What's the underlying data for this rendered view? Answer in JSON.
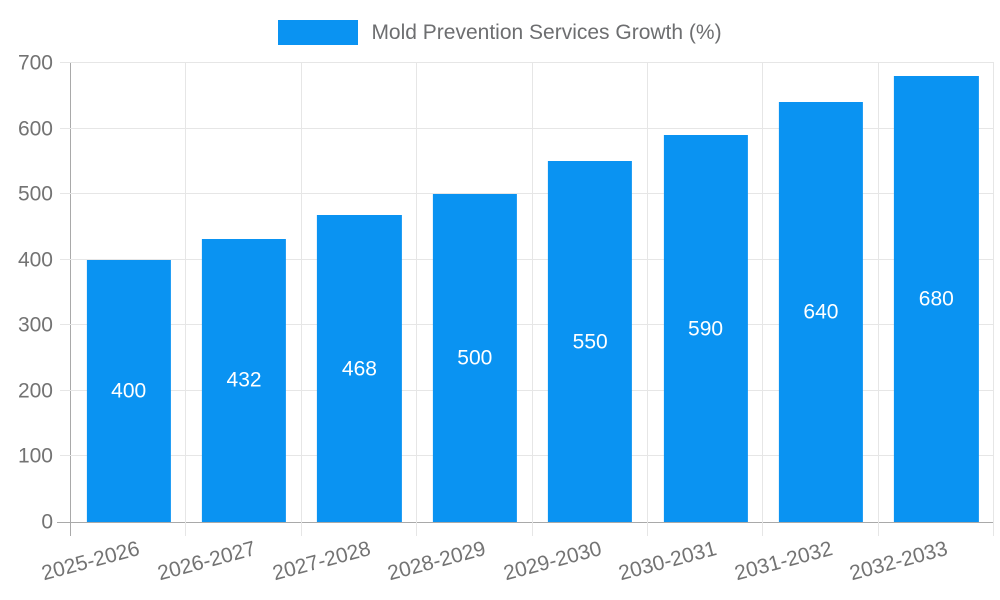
{
  "chart_data": {
    "type": "bar",
    "title": "",
    "xlabel": "",
    "ylabel": "",
    "categories": [
      "2025-2026",
      "2026-2027",
      "2027-2028",
      "2028-2029",
      "2029-2030",
      "2030-2031",
      "2031-2032",
      "2032-2033"
    ],
    "series": [
      {
        "name": "Mold Prevention Services Growth (%)",
        "values": [
          400,
          432,
          468,
          500,
          550,
          590,
          640,
          680
        ],
        "color": "#0a93f2"
      }
    ],
    "value_labels": {
      "position": "bar-center",
      "color": "#ffffff"
    },
    "ylim": [
      0,
      700
    ],
    "yticks": [
      0,
      100,
      200,
      300,
      400,
      500,
      600,
      700
    ],
    "x_tick_rotation_deg": -15,
    "grid": {
      "horizontal": true,
      "vertical": true
    },
    "legend_position": "top-center",
    "colors": {
      "background": "#ffffff",
      "grid": "#e6e6e6",
      "axis": "#a9a9a9",
      "tick_label": "#737373",
      "legend_text": "#6d6e70"
    }
  }
}
